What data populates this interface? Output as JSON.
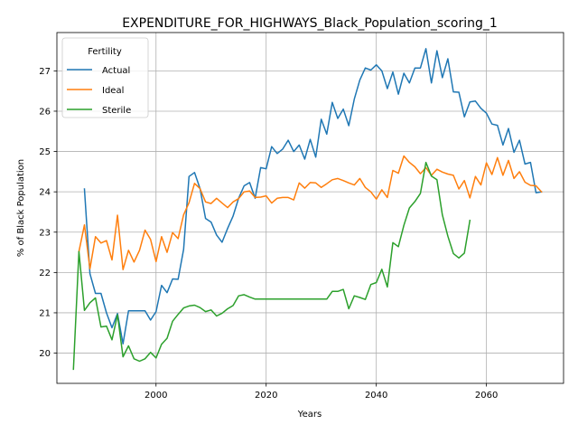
{
  "chart_data": {
    "type": "line",
    "title": "EXPENDITURE_FOR_HIGHWAYS_Black_Population_scoring_1",
    "xlabel": "Years",
    "ylabel": "% of Black Population",
    "xlim": [
      1982,
      2074
    ],
    "ylim": [
      19.25,
      27.95
    ],
    "xticks": [
      2000,
      2020,
      2040,
      2060
    ],
    "yticks": [
      20,
      21,
      22,
      23,
      24,
      25,
      26,
      27
    ],
    "grid": true,
    "legend": {
      "title": "Fertility",
      "position": "upper-left"
    },
    "series": [
      {
        "name": "Actual",
        "color": "#1f77b4",
        "points": [
          [
            1987,
            24.07
          ],
          [
            1988,
            21.97
          ],
          [
            1989,
            21.48
          ],
          [
            1990,
            21.48
          ],
          [
            1991,
            21.0
          ],
          [
            1992,
            20.63
          ],
          [
            1993,
            20.98
          ],
          [
            1994,
            20.23
          ],
          [
            1995,
            21.05
          ],
          [
            1996,
            21.05
          ],
          [
            1997,
            21.05
          ],
          [
            1998,
            21.05
          ],
          [
            1999,
            20.82
          ],
          [
            2000,
            21.03
          ],
          [
            2001,
            21.68
          ],
          [
            2002,
            21.5
          ],
          [
            2003,
            21.84
          ],
          [
            2004,
            21.83
          ],
          [
            2005,
            22.57
          ],
          [
            2006,
            24.38
          ],
          [
            2007,
            24.48
          ],
          [
            2008,
            24.08
          ],
          [
            2009,
            23.34
          ],
          [
            2010,
            23.25
          ],
          [
            2011,
            22.93
          ],
          [
            2012,
            22.75
          ],
          [
            2013,
            23.09
          ],
          [
            2014,
            23.4
          ],
          [
            2015,
            23.84
          ],
          [
            2016,
            24.15
          ],
          [
            2017,
            24.23
          ],
          [
            2018,
            23.84
          ],
          [
            2019,
            24.6
          ],
          [
            2020,
            24.57
          ],
          [
            2021,
            25.12
          ],
          [
            2022,
            24.95
          ],
          [
            2023,
            25.06
          ],
          [
            2024,
            25.28
          ],
          [
            2025,
            25.0
          ],
          [
            2026,
            25.16
          ],
          [
            2027,
            24.81
          ],
          [
            2028,
            25.3
          ],
          [
            2029,
            24.86
          ],
          [
            2030,
            25.8
          ],
          [
            2031,
            25.43
          ],
          [
            2032,
            26.22
          ],
          [
            2033,
            25.82
          ],
          [
            2034,
            26.05
          ],
          [
            2035,
            25.64
          ],
          [
            2036,
            26.3
          ],
          [
            2037,
            26.77
          ],
          [
            2038,
            27.07
          ],
          [
            2039,
            27.02
          ],
          [
            2040,
            27.15
          ],
          [
            2041,
            27.0
          ],
          [
            2042,
            26.56
          ],
          [
            2043,
            26.97
          ],
          [
            2044,
            26.42
          ],
          [
            2045,
            26.94
          ],
          [
            2046,
            26.7
          ],
          [
            2047,
            27.07
          ],
          [
            2048,
            27.07
          ],
          [
            2049,
            27.55
          ],
          [
            2050,
            26.7
          ],
          [
            2051,
            27.5
          ],
          [
            2052,
            26.83
          ],
          [
            2053,
            27.3
          ],
          [
            2054,
            26.48
          ],
          [
            2055,
            26.47
          ],
          [
            2056,
            25.86
          ],
          [
            2057,
            26.23
          ],
          [
            2058,
            26.25
          ],
          [
            2059,
            26.07
          ],
          [
            2060,
            25.95
          ],
          [
            2061,
            25.68
          ],
          [
            2062,
            25.65
          ],
          [
            2063,
            25.16
          ],
          [
            2064,
            25.57
          ],
          [
            2065,
            24.98
          ],
          [
            2066,
            25.28
          ],
          [
            2067,
            24.69
          ],
          [
            2068,
            24.73
          ],
          [
            2069,
            23.98
          ],
          [
            2070,
            24.0
          ]
        ]
      },
      {
        "name": "Ideal",
        "color": "#ff7f0e",
        "points": [
          [
            1986,
            22.52
          ],
          [
            1987,
            23.18
          ],
          [
            1988,
            22.09
          ],
          [
            1989,
            22.89
          ],
          [
            1990,
            22.73
          ],
          [
            1991,
            22.79
          ],
          [
            1992,
            22.31
          ],
          [
            1993,
            23.42
          ],
          [
            1994,
            22.07
          ],
          [
            1995,
            22.55
          ],
          [
            1996,
            22.26
          ],
          [
            1997,
            22.55
          ],
          [
            1998,
            23.05
          ],
          [
            1999,
            22.82
          ],
          [
            2000,
            22.27
          ],
          [
            2001,
            22.89
          ],
          [
            2002,
            22.5
          ],
          [
            2003,
            22.99
          ],
          [
            2004,
            22.84
          ],
          [
            2005,
            23.43
          ],
          [
            2006,
            23.73
          ],
          [
            2007,
            24.21
          ],
          [
            2008,
            24.08
          ],
          [
            2009,
            23.75
          ],
          [
            2010,
            23.71
          ],
          [
            2011,
            23.84
          ],
          [
            2012,
            23.72
          ],
          [
            2013,
            23.61
          ],
          [
            2014,
            23.75
          ],
          [
            2015,
            23.83
          ],
          [
            2016,
            24.0
          ],
          [
            2017,
            24.02
          ],
          [
            2018,
            23.86
          ],
          [
            2019,
            23.87
          ],
          [
            2020,
            23.9
          ],
          [
            2021,
            23.72
          ],
          [
            2022,
            23.84
          ],
          [
            2023,
            23.86
          ],
          [
            2024,
            23.86
          ],
          [
            2025,
            23.8
          ],
          [
            2026,
            24.22
          ],
          [
            2027,
            24.09
          ],
          [
            2028,
            24.23
          ],
          [
            2029,
            24.22
          ],
          [
            2030,
            24.11
          ],
          [
            2031,
            24.2
          ],
          [
            2032,
            24.3
          ],
          [
            2033,
            24.33
          ],
          [
            2034,
            24.28
          ],
          [
            2035,
            24.22
          ],
          [
            2036,
            24.17
          ],
          [
            2037,
            24.33
          ],
          [
            2038,
            24.11
          ],
          [
            2039,
            24.0
          ],
          [
            2040,
            23.82
          ],
          [
            2041,
            24.05
          ],
          [
            2042,
            23.86
          ],
          [
            2043,
            24.53
          ],
          [
            2044,
            24.46
          ],
          [
            2045,
            24.89
          ],
          [
            2046,
            24.73
          ],
          [
            2047,
            24.62
          ],
          [
            2048,
            24.45
          ],
          [
            2049,
            24.6
          ],
          [
            2050,
            24.41
          ],
          [
            2051,
            24.56
          ],
          [
            2052,
            24.49
          ],
          [
            2053,
            24.44
          ],
          [
            2054,
            24.41
          ],
          [
            2055,
            24.07
          ],
          [
            2056,
            24.28
          ],
          [
            2057,
            23.85
          ],
          [
            2058,
            24.38
          ],
          [
            2059,
            24.17
          ],
          [
            2060,
            24.72
          ],
          [
            2061,
            24.43
          ],
          [
            2062,
            24.85
          ],
          [
            2063,
            24.41
          ],
          [
            2064,
            24.78
          ],
          [
            2065,
            24.33
          ],
          [
            2066,
            24.5
          ],
          [
            2067,
            24.24
          ],
          [
            2068,
            24.16
          ],
          [
            2069,
            24.15
          ],
          [
            2070,
            24.0
          ]
        ]
      },
      {
        "name": "Sterile",
        "color": "#2ca02c",
        "points": [
          [
            1985,
            19.6
          ],
          [
            1986,
            22.52
          ],
          [
            1987,
            21.06
          ],
          [
            1988,
            21.25
          ],
          [
            1989,
            21.37
          ],
          [
            1990,
            20.65
          ],
          [
            1991,
            20.67
          ],
          [
            1992,
            20.33
          ],
          [
            1993,
            20.95
          ],
          [
            1994,
            19.91
          ],
          [
            1995,
            20.18
          ],
          [
            1996,
            19.86
          ],
          [
            1997,
            19.8
          ],
          [
            1998,
            19.86
          ],
          [
            1999,
            20.02
          ],
          [
            2000,
            19.88
          ],
          [
            2001,
            20.22
          ],
          [
            2002,
            20.37
          ],
          [
            2003,
            20.79
          ],
          [
            2004,
            20.96
          ],
          [
            2005,
            21.12
          ],
          [
            2006,
            21.17
          ],
          [
            2007,
            21.19
          ],
          [
            2008,
            21.13
          ],
          [
            2009,
            21.03
          ],
          [
            2010,
            21.07
          ],
          [
            2011,
            20.92
          ],
          [
            2012,
            20.99
          ],
          [
            2013,
            21.1
          ],
          [
            2014,
            21.18
          ],
          [
            2015,
            21.42
          ],
          [
            2016,
            21.45
          ],
          [
            2017,
            21.39
          ],
          [
            2018,
            21.34
          ],
          [
            2019,
            21.34
          ],
          [
            2020,
            21.34
          ],
          [
            2021,
            21.34
          ],
          [
            2022,
            21.34
          ],
          [
            2023,
            21.34
          ],
          [
            2024,
            21.34
          ],
          [
            2025,
            21.34
          ],
          [
            2026,
            21.34
          ],
          [
            2027,
            21.34
          ],
          [
            2028,
            21.34
          ],
          [
            2029,
            21.34
          ],
          [
            2030,
            21.34
          ],
          [
            2031,
            21.34
          ],
          [
            2032,
            21.53
          ],
          [
            2033,
            21.53
          ],
          [
            2034,
            21.58
          ],
          [
            2035,
            21.1
          ],
          [
            2036,
            21.42
          ],
          [
            2037,
            21.38
          ],
          [
            2038,
            21.33
          ],
          [
            2039,
            21.7
          ],
          [
            2040,
            21.75
          ],
          [
            2041,
            22.08
          ],
          [
            2042,
            21.64
          ],
          [
            2043,
            22.74
          ],
          [
            2044,
            22.64
          ],
          [
            2045,
            23.17
          ],
          [
            2046,
            23.6
          ],
          [
            2047,
            23.76
          ],
          [
            2048,
            23.96
          ],
          [
            2049,
            24.73
          ],
          [
            2050,
            24.39
          ],
          [
            2051,
            24.3
          ],
          [
            2052,
            23.43
          ],
          [
            2053,
            22.9
          ],
          [
            2054,
            22.47
          ],
          [
            2055,
            22.36
          ],
          [
            2056,
            22.48
          ],
          [
            2057,
            23.29
          ]
        ]
      }
    ]
  }
}
